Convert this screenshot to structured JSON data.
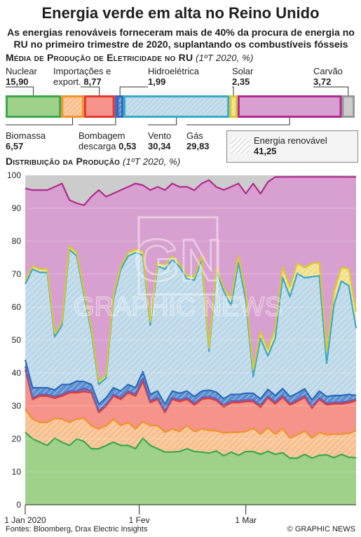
{
  "title": "Energia verde em alta no Reino Unido",
  "subtitle": "As energias renováveis forneceram mais de 40% da procura de energia no RU no primeiro trimestre de 2020, suplantando os combustíveis fósseis",
  "section1": {
    "title": "Média de Produção de Eletricidade no RU",
    "period": "(1ºT 2020, %)"
  },
  "section2": {
    "title": "Distribuição da Produção",
    "period": "(1ºT 2020, %)"
  },
  "mix": [
    {
      "name": "Nuclear",
      "value": "15,90",
      "num": 15.9,
      "color": "#9fd18a",
      "hatch": false
    },
    {
      "name": "Biomassa",
      "value": "6,57",
      "num": 6.57,
      "color": "#f8c090",
      "hatch": true
    },
    {
      "name": "Importações e export.",
      "value": "8,77",
      "num": 8.77,
      "color": "#f4948a",
      "hatch": false
    },
    {
      "name": "Bombagem descarga",
      "value": "0,53",
      "num": 0.53,
      "color": "#7a6fc0",
      "hatch": false
    },
    {
      "name": "Hidroelétrica",
      "value": "1,99",
      "num": 1.99,
      "color": "#5b8fd0",
      "hatch": true
    },
    {
      "name": "Vento",
      "value": "30,34",
      "num": 30.34,
      "color": "#bcd8e8",
      "hatch": true
    },
    {
      "name": "Solar",
      "value": "2,35",
      "num": 2.35,
      "color": "#f0e08a",
      "hatch": true
    },
    {
      "name": "Gás",
      "value": "29,83",
      "num": 29.83,
      "color": "#d8a0d0",
      "hatch": false
    },
    {
      "name": "Carvão",
      "value": "3,72",
      "num": 3.72,
      "color": "#cccccc",
      "hatch": false
    }
  ],
  "legend": {
    "label": "Energia renovável",
    "value": "41,25"
  },
  "chart_data": {
    "type": "area",
    "stacked": true,
    "x": [
      "1 Jan",
      "3 Jan",
      "5 Jan",
      "7 Jan",
      "9 Jan",
      "11 Jan",
      "13 Jan",
      "15 Jan",
      "17 Jan",
      "19 Jan",
      "21 Jan",
      "23 Jan",
      "25 Jan",
      "27 Jan",
      "29 Jan",
      "31 Jan",
      "2 Fev",
      "4 Fev",
      "6 Fev",
      "8 Fev",
      "10 Fev",
      "12 Fev",
      "14 Fev",
      "16 Fev",
      "18 Fev",
      "20 Fev",
      "22 Fev",
      "24 Fev",
      "26 Fev",
      "28 Fev",
      "1 Mar",
      "3 Mar",
      "5 Mar",
      "7 Mar",
      "9 Mar",
      "11 Mar",
      "13 Mar",
      "15 Mar",
      "17 Mar",
      "19 Mar",
      "21 Mar",
      "23 Mar",
      "25 Mar",
      "27 Mar",
      "29 Mar",
      "31 Mar"
    ],
    "xticks": [
      "1 Jan 2020",
      "1 Fev",
      "1 Mar"
    ],
    "ylim": [
      0,
      100
    ],
    "yticks": [
      0,
      10,
      20,
      30,
      40,
      50,
      60,
      70,
      80,
      90,
      100
    ],
    "series": [
      {
        "name": "Nuclear",
        "color": "#9fd18a",
        "line": "#3aa84a",
        "values": [
          22,
          20,
          19,
          18,
          20,
          19,
          18,
          20,
          19,
          17,
          17,
          18,
          19,
          18,
          18,
          17,
          20,
          18,
          17,
          16,
          16,
          16,
          17,
          16,
          16,
          16,
          16,
          15,
          16,
          15,
          16,
          16,
          15,
          16,
          15,
          15,
          14,
          14,
          15,
          14,
          15,
          15,
          14,
          15,
          14,
          14
        ]
      },
      {
        "name": "Biomassa",
        "color": "#f8c090",
        "line": "#f0932a",
        "values": [
          7,
          6,
          6,
          7,
          6,
          7,
          7,
          6,
          7,
          7,
          6,
          6,
          7,
          6,
          7,
          6,
          5,
          6,
          7,
          6,
          7,
          6,
          7,
          6,
          7,
          7,
          6,
          7,
          6,
          7,
          6,
          7,
          6,
          7,
          6,
          7,
          6,
          7,
          7,
          6,
          7,
          6,
          7,
          6,
          7,
          8
        ]
      },
      {
        "name": "Importações e export.",
        "color": "#f4948a",
        "line": "#e23a30",
        "values": [
          12,
          6,
          8,
          8,
          6,
          7,
          9,
          8,
          8,
          10,
          5,
          6,
          7,
          8,
          9,
          10,
          12,
          7,
          8,
          6,
          9,
          9,
          8,
          8,
          9,
          10,
          9,
          8,
          9,
          9,
          9,
          8,
          8,
          9,
          9,
          9,
          10,
          10,
          10,
          9,
          10,
          9,
          9,
          9,
          9,
          9
        ]
      },
      {
        "name": "Bombagem descarga",
        "color": "#7a6fc0",
        "line": "#6a5fb8",
        "values": [
          1,
          0.5,
          0.5,
          0.5,
          0.5,
          0.5,
          0.5,
          0.5,
          1,
          0.5,
          0.5,
          0.5,
          0.5,
          0.5,
          0.5,
          0.5,
          1,
          0.5,
          0.5,
          0.5,
          0.5,
          0.5,
          0.5,
          0.5,
          0.5,
          0.5,
          0.5,
          0.5,
          0.5,
          0.5,
          0.5,
          0.5,
          0.5,
          0.5,
          0.5,
          0.5,
          0.5,
          0.5,
          0.5,
          0.5,
          0.5,
          0.5,
          0.5,
          0.5,
          0.5,
          0.5
        ]
      },
      {
        "name": "Hidroelétrica",
        "color": "#5b8fd0",
        "line": "#2a6ab8",
        "values": [
          2,
          3,
          2,
          2,
          2,
          3,
          2,
          3,
          2,
          2,
          2,
          2,
          2,
          2,
          2,
          2,
          2,
          2,
          2,
          2,
          2,
          2,
          2,
          2,
          2,
          2,
          2,
          2,
          2,
          2,
          2,
          2,
          2,
          2,
          2,
          2,
          2,
          2,
          2,
          2,
          2,
          2,
          2,
          2,
          2,
          1
        ]
      },
      {
        "name": "Vento",
        "color": "#bcd8e8",
        "line": "#3aa8c8",
        "values": [
          23,
          36,
          35,
          35,
          16,
          18,
          41,
          38,
          26,
          16,
          6,
          6,
          27,
          37,
          39,
          41,
          35,
          21,
          38,
          41,
          40,
          38,
          34,
          35,
          40,
          12,
          36,
          33,
          27,
          40,
          28,
          5,
          18,
          10,
          17,
          32,
          30,
          36,
          33,
          37,
          35,
          10,
          27,
          34,
          32,
          20
        ]
      },
      {
        "name": "Solar",
        "color": "#f0e08a",
        "line": "#d8c830",
        "values": [
          1,
          1,
          1,
          1,
          1,
          1,
          1,
          1,
          1,
          1,
          1,
          1,
          1,
          1,
          1,
          1,
          1,
          1,
          1,
          1,
          1,
          1,
          1,
          1,
          1,
          1,
          1,
          1,
          2,
          2,
          2,
          2,
          2,
          2,
          3,
          3,
          3,
          3,
          3,
          4,
          4,
          4,
          4,
          4,
          5,
          5
        ]
      },
      {
        "name": "Gás",
        "color": "#d8a0d0",
        "line": "#b02a90",
        "values": [
          28,
          23,
          24,
          24,
          44,
          42,
          14,
          15,
          26,
          40,
          58,
          54,
          31,
          23,
          20,
          20,
          20,
          40,
          23,
          23,
          22,
          23,
          27,
          26,
          22,
          52,
          24,
          30,
          34,
          22,
          30,
          56,
          41,
          50,
          45,
          26,
          33,
          26,
          27,
          26,
          26,
          52,
          34,
          27,
          27,
          40
        ]
      },
      {
        "name": "Carvão",
        "color": "#cccccc",
        "line": "#999999",
        "values": [
          4,
          4.5,
          4.5,
          4.5,
          3.5,
          2.5,
          7.5,
          8.5,
          9,
          6.5,
          4.5,
          6.5,
          5.5,
          4.5,
          3.5,
          2.5,
          3,
          4.5,
          3.5,
          4.5,
          2.5,
          3.5,
          3.5,
          4.5,
          2.5,
          1.5,
          3.5,
          4.5,
          3.5,
          2.5,
          5.5,
          2.5,
          5.5,
          2,
          0.5,
          0.5,
          0.5,
          0.5,
          0.5,
          0.5,
          0.5,
          0.5,
          0.5,
          0.5,
          0.5,
          0.5
        ]
      }
    ]
  },
  "watermark": "GRAPHIC NEWS",
  "footer": {
    "source": "Fontes: Bloomberg, Drax Electric Insights",
    "credit": "© GRAPHIC NEWS"
  }
}
